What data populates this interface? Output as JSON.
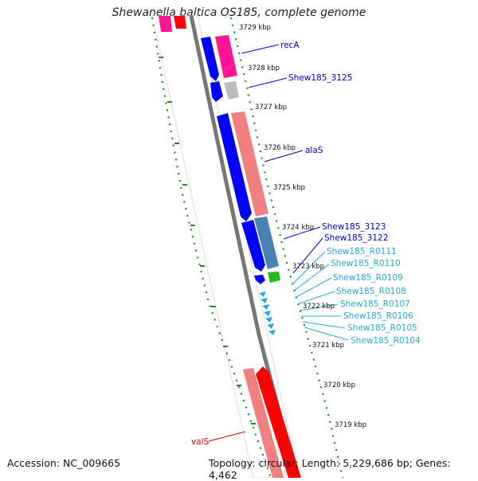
{
  "title": "Shewanella baltica OS185, complete genome",
  "footer": {
    "accession": "Accession: NC_009665",
    "summary": "Topology: circular; Length: 5,229,686 bp; Genes: 4,462"
  },
  "ruler": {
    "ticks": [
      "3729 kbp",
      "3728 kbp",
      "3727 kbp",
      "3726 kbp",
      "3725 kbp",
      "3724 kbp",
      "3723 kbp",
      "3722 kbp",
      "3721 kbp",
      "3720 kbp",
      "3719 kbp"
    ]
  },
  "colors": {
    "cds_forward": "#ff0000",
    "cds_forward_light": "#f08080",
    "cds_reverse": "#0000ff",
    "pink": "#ff1493",
    "rrna": "#4682b4",
    "trna": "#22bb22",
    "misc": "#bbbbbb",
    "ruler": "#228b22"
  },
  "labels": [
    {
      "text": "recA",
      "color": "#0000cc"
    },
    {
      "text": "Shew185_3125",
      "color": "#0000cc"
    },
    {
      "text": "alaS",
      "color": "#0000cc"
    },
    {
      "text": "Shew185_3123",
      "color": "#0000cc"
    },
    {
      "text": "Shew185_3122",
      "color": "#0000cc"
    },
    {
      "text": "Shew185_R0111",
      "color": "#22aadd"
    },
    {
      "text": "Shew185_R0110",
      "color": "#22aadd"
    },
    {
      "text": "Shew185_R0109",
      "color": "#22aadd"
    },
    {
      "text": "Shew185_R0108",
      "color": "#22aadd"
    },
    {
      "text": "Shew185_R0107",
      "color": "#22aadd"
    },
    {
      "text": "Shew185_R0106",
      "color": "#22aadd"
    },
    {
      "text": "Shew185_R0105",
      "color": "#22aadd"
    },
    {
      "text": "Shew185_R0104",
      "color": "#22aadd"
    },
    {
      "text": "valS",
      "color": "#dd0000"
    }
  ]
}
